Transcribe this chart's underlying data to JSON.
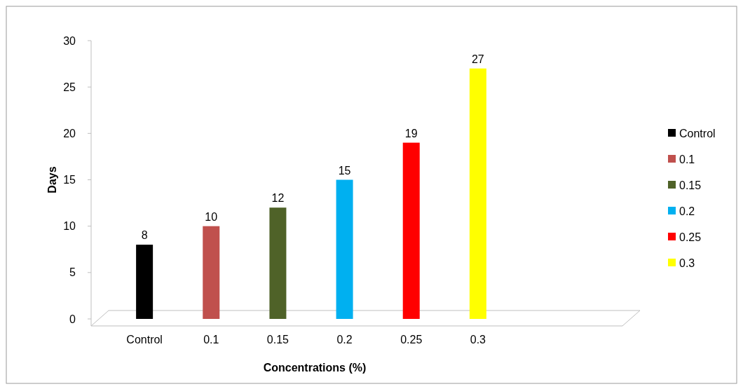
{
  "chart_data": {
    "type": "bar",
    "xlabel": "Concentrations (%)",
    "ylabel": "Days",
    "categories": [
      "Control",
      "0.1",
      "0.15",
      "0.2",
      "0.25",
      "0.3"
    ],
    "series": [
      {
        "name": "Control",
        "color": "#000000",
        "values": [
          8,
          null,
          null,
          null,
          null,
          null
        ]
      },
      {
        "name": "0.1",
        "color": "#c0504d",
        "values": [
          null,
          10,
          null,
          null,
          null,
          null
        ]
      },
      {
        "name": "0.15",
        "color": "#4f6228",
        "values": [
          null,
          null,
          12,
          null,
          null,
          null
        ]
      },
      {
        "name": "0.2",
        "color": "#00b0f0",
        "values": [
          null,
          null,
          null,
          15,
          null,
          null
        ]
      },
      {
        "name": "0.25",
        "color": "#ff0000",
        "values": [
          null,
          null,
          null,
          null,
          19,
          null
        ]
      },
      {
        "name": "0.3",
        "color": "#ffff00",
        "values": [
          null,
          null,
          null,
          null,
          null,
          27
        ]
      }
    ],
    "ylim": [
      0,
      30
    ],
    "yticks": [
      0,
      5,
      10,
      15,
      20,
      25,
      30
    ],
    "data_labels": true,
    "legend": "right",
    "grid": false
  }
}
